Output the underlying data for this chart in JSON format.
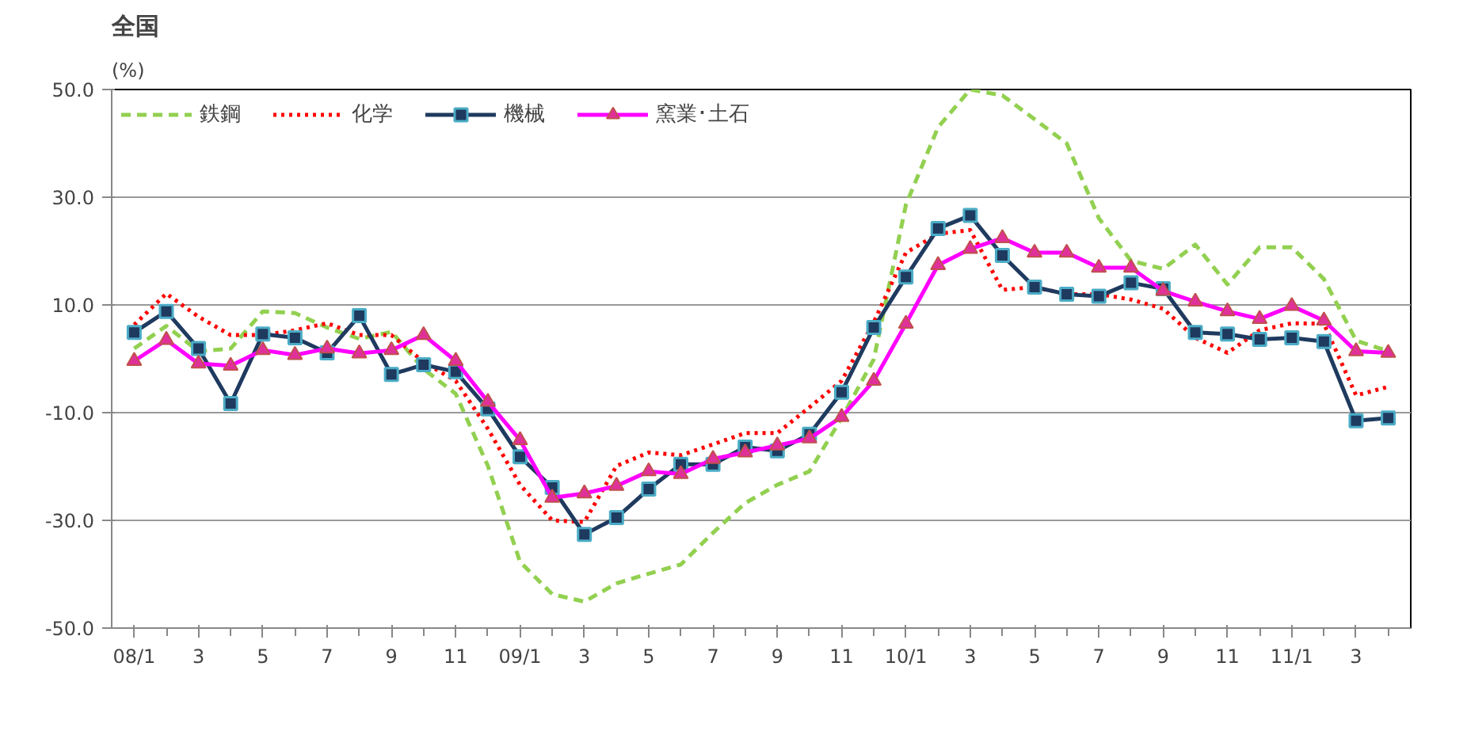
{
  "chart_data": {
    "type": "line",
    "title": "全国",
    "ylabel": "(%)",
    "categories": [
      "08/1",
      null,
      "3",
      null,
      "5",
      null,
      "7",
      null,
      "9",
      null,
      "11",
      null,
      "09/1",
      null,
      "3",
      null,
      "5",
      null,
      "7",
      null,
      "9",
      null,
      "11",
      null,
      "10/1",
      null,
      "3",
      null,
      "5",
      null,
      "7",
      null,
      "9",
      null,
      "11",
      null,
      "11/1",
      null,
      "3",
      null
    ],
    "ylim": [
      -50,
      50
    ],
    "yticks": [
      {
        "value": -50,
        "label": "-50.0"
      },
      {
        "value": -30,
        "label": "-30.0"
      },
      {
        "value": -10,
        "label": "-10.0"
      },
      {
        "value": 10,
        "label": "10.0"
      },
      {
        "value": 30,
        "label": "30.0"
      },
      {
        "value": 50,
        "label": "50.0"
      }
    ],
    "grid": "y",
    "legend": "top left",
    "series": [
      {
        "name": "鉄鋼",
        "color": "#92d050",
        "line_style": "dashed",
        "marker": "none",
        "values": [
          1.9,
          6.1,
          1.4,
          1.9,
          8.8,
          8.5,
          5.8,
          3.7,
          5.0,
          -1.9,
          -6.5,
          -19.9,
          -37.7,
          -43.7,
          -45.1,
          -41.7,
          -39.9,
          -38.2,
          -32.3,
          -26.8,
          -23.4,
          -20.9,
          -11.0,
          -0.1,
          28.6,
          43.0,
          50.0,
          48.9,
          44.5,
          40.0,
          26.1,
          18.2,
          16.7,
          21.2,
          13.8,
          20.7,
          20.7,
          14.8,
          3.4,
          1.4
        ]
      },
      {
        "name": "化学",
        "color": "#ff0000",
        "line_style": "dotted",
        "marker": "none",
        "values": [
          6.3,
          12.1,
          7.8,
          4.4,
          4.4,
          5.3,
          6.6,
          4.4,
          4.4,
          -0.6,
          -4.1,
          -13.0,
          -23.4,
          -30.0,
          -30.3,
          -19.9,
          -17.4,
          -17.9,
          -15.9,
          -13.8,
          -13.8,
          -9.0,
          -4.1,
          6.8,
          19.7,
          23.2,
          23.9,
          12.8,
          13.3,
          12.0,
          12.0,
          11.0,
          9.3,
          3.9,
          1.1,
          5.3,
          6.6,
          6.5,
          -6.8,
          -5.2
        ]
      },
      {
        "name": "機械",
        "color": "#1f3a5f",
        "line_style": "solid",
        "marker": "square",
        "values": [
          4.9,
          8.8,
          1.9,
          -8.3,
          4.6,
          3.9,
          1.1,
          8.0,
          -2.9,
          -1.1,
          -2.4,
          -9.3,
          -18.2,
          -23.9,
          -32.6,
          -29.5,
          -24.2,
          -19.6,
          -19.6,
          -16.4,
          -17.1,
          -14.0,
          -6.2,
          5.8,
          15.2,
          24.2,
          26.6,
          19.2,
          13.3,
          12.0,
          11.6,
          14.1,
          13.0,
          4.9,
          4.6,
          3.6,
          3.9,
          3.2,
          -11.5,
          -11.0
        ]
      },
      {
        "name": "窯業･土石",
        "color": "#ff00ff",
        "line_style": "solid",
        "marker": "triangle",
        "values": [
          -0.4,
          3.5,
          -0.9,
          -1.3,
          1.6,
          0.7,
          1.9,
          1.0,
          1.6,
          4.4,
          -0.4,
          -8.0,
          -15.1,
          -25.8,
          -25.0,
          -23.6,
          -20.9,
          -21.4,
          -18.6,
          -17.4,
          -16.1,
          -14.8,
          -10.8,
          -4.1,
          6.5,
          17.4,
          20.4,
          22.4,
          19.7,
          19.7,
          16.9,
          16.9,
          12.6,
          10.6,
          8.8,
          7.4,
          9.8,
          7.1,
          1.4,
          1.1
        ]
      }
    ]
  }
}
